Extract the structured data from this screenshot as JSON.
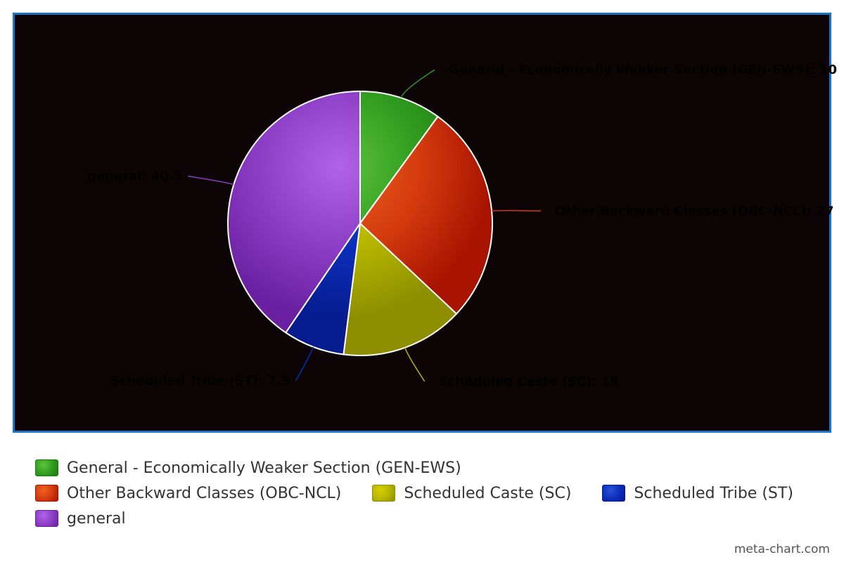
{
  "chart_data": {
    "type": "pie",
    "title": "",
    "series": [
      {
        "label": "General - Economically Weaker Section (GEN-EWS)",
        "value": 10,
        "data_label": "General - Economically Weaker Section (GEN-EWS): 10",
        "color": "#2f9a1e",
        "color_light": "#5cc43c",
        "color_dark": "#1d7a12"
      },
      {
        "label": "Other Backward Classes (OBC-NCL)",
        "value": 27,
        "data_label": "Other Backward Classes (OBC-NCL): 27",
        "color": "#d23a0e",
        "color_light": "#f0621f",
        "color_dark": "#a81400"
      },
      {
        "label": "Scheduled Caste (SC)",
        "value": 15,
        "data_label": "Scheduled Caste (SC): 15",
        "color": "#b5b400",
        "color_light": "#d6d000",
        "color_dark": "#8e8e00"
      },
      {
        "label": "Scheduled Tribe (ST)",
        "value": 7.5,
        "data_label": "Scheduled Tribe (ST): 7.5",
        "color": "#0a2db8",
        "color_light": "#2a4fd8",
        "color_dark": "#061c8f"
      },
      {
        "label": "general",
        "value": 40.5,
        "data_label": "general: 40.5",
        "color": "#8b3cc4",
        "color_light": "#b063e8",
        "color_dark": "#6a1fa0"
      }
    ],
    "legend_placement": "bottom",
    "background": "#0d0505",
    "frame_color": "#1a75c4"
  },
  "credit": "meta-chart.com"
}
